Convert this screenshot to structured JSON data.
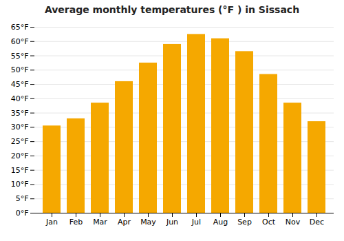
{
  "chart_data": {
    "type": "bar",
    "title": "Average monthly temperatures (°F ) in Sissach",
    "categories": [
      "Jan",
      "Feb",
      "Mar",
      "Apr",
      "May",
      "Jun",
      "Jul",
      "Aug",
      "Sep",
      "Oct",
      "Nov",
      "Dec"
    ],
    "values": [
      30.5,
      33.0,
      38.5,
      46.0,
      52.5,
      59.0,
      62.5,
      61.0,
      56.5,
      48.5,
      38.5,
      32.0
    ],
    "color": "#F5A800",
    "ylim": [
      0,
      65
    ],
    "yticks": [
      {
        "value": 0,
        "label": "0°F"
      },
      {
        "value": 5,
        "label": "5°F"
      },
      {
        "value": 10,
        "label": "10°F"
      },
      {
        "value": 15,
        "label": "15°F"
      },
      {
        "value": 20,
        "label": "20°F"
      },
      {
        "value": 25,
        "label": "25°F"
      },
      {
        "value": 30,
        "label": "30°F"
      },
      {
        "value": 35,
        "label": "35°F"
      },
      {
        "value": 40,
        "label": "40°F"
      },
      {
        "value": 45,
        "label": "45°F"
      },
      {
        "value": 50,
        "label": "50°F"
      },
      {
        "value": 55,
        "label": "55°F"
      },
      {
        "value": 60,
        "label": "60°F"
      },
      {
        "value": 65,
        "label": "65°F"
      }
    ],
    "grid": true
  }
}
